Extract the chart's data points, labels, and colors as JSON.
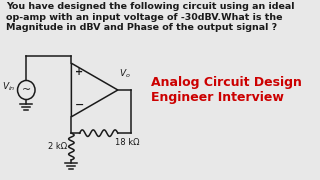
{
  "bg_color": "#e8e8e8",
  "text_color": "#1a1a1a",
  "red_color": "#cc0000",
  "title_text": "You have designed the following circuit using an ideal\nop-amp with an input voltage of -30dBV.What is the\nMagnitude in dBV and Phase of the output signal ?",
  "label_text": "Analog Circuit Design\nEngineer Interview",
  "vin_label": "$V_{in}$",
  "vout_label": "$V_o$",
  "r1_label": "18 kΩ",
  "r2_label": "2 kΩ",
  "title_fontsize": 6.8,
  "label_fontsize": 9.0
}
